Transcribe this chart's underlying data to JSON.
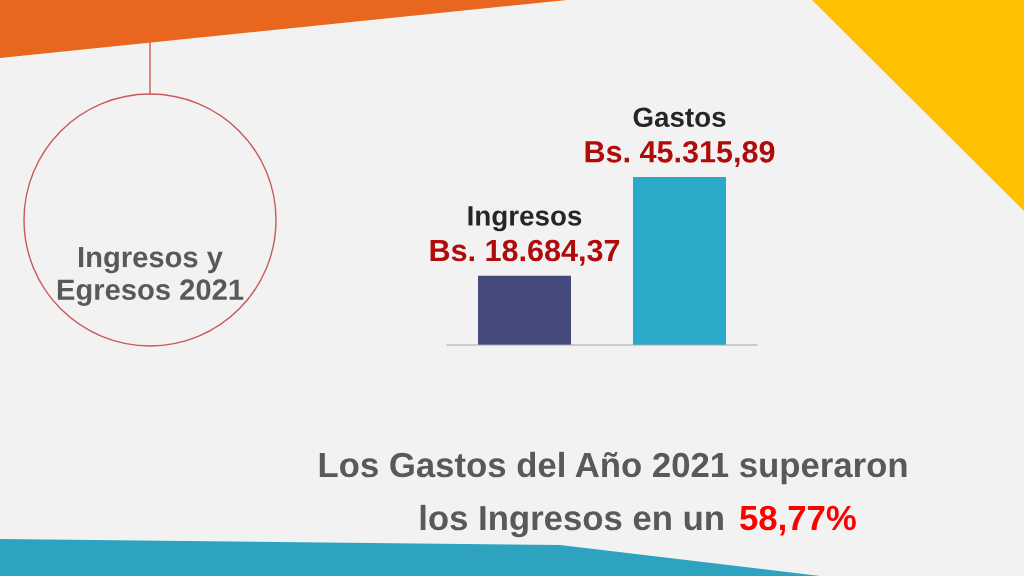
{
  "chart_data": {
    "type": "bar",
    "title": "Ingresos y\nEgresos 2021",
    "categories": [
      "Ingresos",
      "Gastos"
    ],
    "values": [
      18684.37,
      45315.89
    ],
    "colors": [
      "#454a7c",
      "#2aa9c9"
    ],
    "value_labels": [
      "Bs. 18.684,37",
      "Bs. 45.315,89"
    ],
    "tick_labels": false,
    "annotations": [
      "Los Gastos del Año 2021 superaron",
      "los Ingresos en un",
      "58,77%"
    ]
  }
}
